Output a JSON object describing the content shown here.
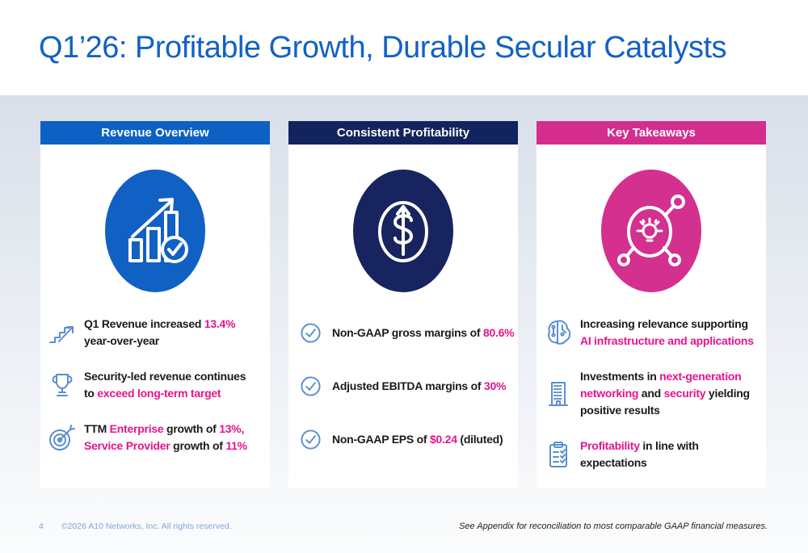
{
  "slide": {
    "title": "Q1’26: Profitable Growth, Durable Secular Catalysts",
    "page_number": "4",
    "copyright": "©2026 A10 Networks, Inc. All rights reserved.",
    "footnote": "See Appendix for reconciliation to most comparable GAAP financial measures."
  },
  "colors": {
    "title_blue": "#1261c6",
    "accent_blue": "#0e61c3",
    "navy": "#13235d",
    "magenta": "#d32e8e",
    "highlight_pink": "#e6148c",
    "icon_blue": "#5b8fcb",
    "footer_blue": "#7fa7d8"
  },
  "columns": [
    {
      "id": "revenue-overview",
      "header": "Revenue Overview",
      "header_color": "#0e61c3",
      "circle_color": "#1160c4",
      "circle_icon": "bar-chart-growth-icon",
      "bullets": [
        {
          "icon": "stairs-growth-icon",
          "segments": [
            {
              "text": "Q1 Revenue increased ",
              "highlight": false
            },
            {
              "text": "13.4%",
              "highlight": true
            },
            {
              "text": "\nyear-over-year",
              "highlight": false
            }
          ]
        },
        {
          "icon": "trophy-icon",
          "segments": [
            {
              "text": "Security-led revenue continues\nto ",
              "highlight": false
            },
            {
              "text": "exceed long-term target",
              "highlight": true
            }
          ]
        },
        {
          "icon": "target-icon",
          "segments": [
            {
              "text": "TTM ",
              "highlight": false
            },
            {
              "text": "Enterprise",
              "highlight": true
            },
            {
              "text": " growth of ",
              "highlight": false
            },
            {
              "text": "13%,",
              "highlight": true
            },
            {
              "text": "\n",
              "highlight": false
            },
            {
              "text": "Service Provider",
              "highlight": true
            },
            {
              "text": " growth of ",
              "highlight": false
            },
            {
              "text": "11%",
              "highlight": true
            }
          ]
        }
      ]
    },
    {
      "id": "consistent-profitability",
      "header": "Consistent Profitability",
      "header_color": "#13235d",
      "circle_color": "#17245f",
      "circle_icon": "dollar-growth-icon",
      "bullets": [
        {
          "icon": "check-circle-icon",
          "segments": [
            {
              "text": "Non-GAAP gross margins of ",
              "highlight": false
            },
            {
              "text": "80.6%",
              "highlight": true
            }
          ]
        },
        {
          "icon": "check-circle-icon",
          "segments": [
            {
              "text": "Adjusted EBITDA margins of ",
              "highlight": false
            },
            {
              "text": "30%",
              "highlight": true
            }
          ]
        },
        {
          "icon": "check-circle-icon",
          "segments": [
            {
              "text": "Non-GAAP EPS of ",
              "highlight": false
            },
            {
              "text": "$0.24",
              "highlight": true
            },
            {
              "text": " (diluted)",
              "highlight": false
            }
          ]
        }
      ]
    },
    {
      "id": "key-takeaways",
      "header": "Key Takeaways",
      "header_color": "#d32e8e",
      "circle_color": "#d3308f",
      "circle_icon": "idea-network-icon",
      "bullets": [
        {
          "icon": "ai-brain-icon",
          "segments": [
            {
              "text": "Increasing relevance supporting\n",
              "highlight": false
            },
            {
              "text": "AI infrastructure and applications",
              "highlight": true
            }
          ]
        },
        {
          "icon": "building-icon",
          "segments": [
            {
              "text": "Investments in ",
              "highlight": false
            },
            {
              "text": "next-generation\nnetworking",
              "highlight": true
            },
            {
              "text": " and ",
              "highlight": false
            },
            {
              "text": "security",
              "highlight": true
            },
            {
              "text": " yielding\npositive results",
              "highlight": false
            }
          ]
        },
        {
          "icon": "clipboard-checklist-icon",
          "segments": [
            {
              "text": "Profitability",
              "highlight": true
            },
            {
              "text": " in line with\nexpectations",
              "highlight": false
            }
          ]
        }
      ]
    }
  ]
}
